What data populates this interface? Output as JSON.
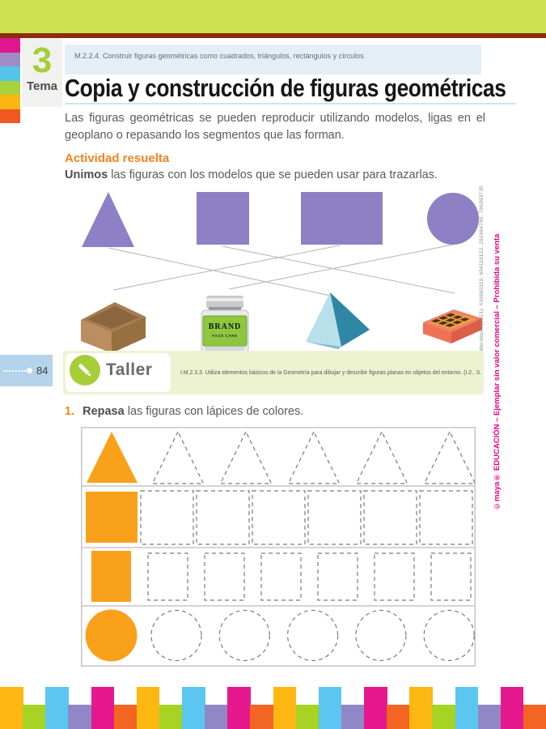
{
  "header": {
    "topic_number": "3",
    "topic_label": "Tema",
    "standard": "M.2.2.4. Construir figuras geométricas como cuadrados, triángulos, rectángulos y círculos.",
    "title": "Copia y construcción de figuras geométricas"
  },
  "intro": "Las figuras geométricas se pueden reproducir utilizando modelos, ligas en el geoplano o repasando los segmentos que las forman.",
  "activity": {
    "heading": "Actividad resuelta",
    "instruction_bold": "Unimos",
    "instruction_rest": " las figuras con los modelos que se pueden usar para trazarlas.",
    "figures": [
      "triángulo",
      "cuadrado",
      "rectángulo",
      "círculo"
    ],
    "objects": [
      "caja de cartón",
      "frasco de crema",
      "pirámide",
      "caja de chocolates"
    ],
    "connections": [
      [
        0,
        2
      ],
      [
        1,
        3
      ],
      [
        2,
        0
      ],
      [
        3,
        1
      ]
    ],
    "jar": {
      "brand": "BRAND",
      "line": "FACE CARE"
    }
  },
  "sidebar": {
    "page_number": "84"
  },
  "taller": {
    "label": "Taller",
    "standard": "I.M.2.3.3. Utiliza elementos básicos de la Geometría para dibujar y describir figuras planas en objetos del entorno. (I.2., S.2.)"
  },
  "exercise": {
    "number": "1.",
    "bold": "Repasa",
    "rest": " las figuras con lápices de colores."
  },
  "worksheet": {
    "rows": [
      {
        "shape": "triangle",
        "traces": 5
      },
      {
        "shape": "square",
        "traces": 6
      },
      {
        "shape": "rectangle",
        "traces": 6
      },
      {
        "shape": "circle",
        "traces": 5
      }
    ]
  },
  "credits": {
    "photos": "Shutterstock, (2021). 416660119, 604119122, 291964790, 796393735",
    "publisher": "©maya® EDUCACIÓN – Ejemplar sin valor comercial – Prohibida su venta"
  },
  "colors": {
    "banner_lime": "#cde24e",
    "banner_maroon": "#8b2b12",
    "accent_orange": "#f58220",
    "shape_purple": "#8d80c4",
    "shape_orange": "#f9a11b",
    "dashed_gray": "#7a7a7a",
    "grid_border": "#c6c6c6",
    "line_gray": "#b3b3b3",
    "taller_green": "#a6ce39",
    "credit_pink": "#e6007e",
    "side_squares": [
      "#e0168c",
      "#9e8cc8",
      "#56c4e8",
      "#a8d23a",
      "#fbb615",
      "#f05a22"
    ],
    "bottom_bars": [
      "#fdb713",
      "#a6d324",
      "#5bc6ef",
      "#9287c6",
      "#e5188e",
      "#f26522"
    ]
  }
}
